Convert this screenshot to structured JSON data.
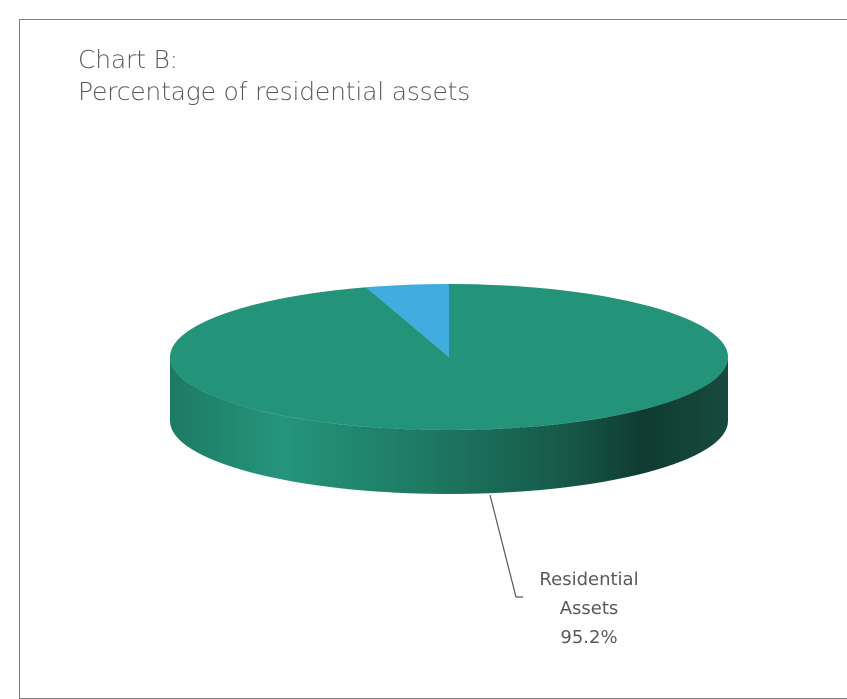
{
  "chart_data": {
    "type": "pie",
    "style": "3d",
    "title_line1": "Chart B:",
    "title_line2": "Percentage of residential assets",
    "slices": [
      {
        "label": "Residential Assets",
        "value": 95.2,
        "color": "#239379",
        "data_label_line1": "Residential",
        "data_label_line2": "Assets",
        "data_label_value": "95.2%"
      },
      {
        "label": "",
        "value": 4.8,
        "color": "#41ACE0"
      }
    ]
  }
}
